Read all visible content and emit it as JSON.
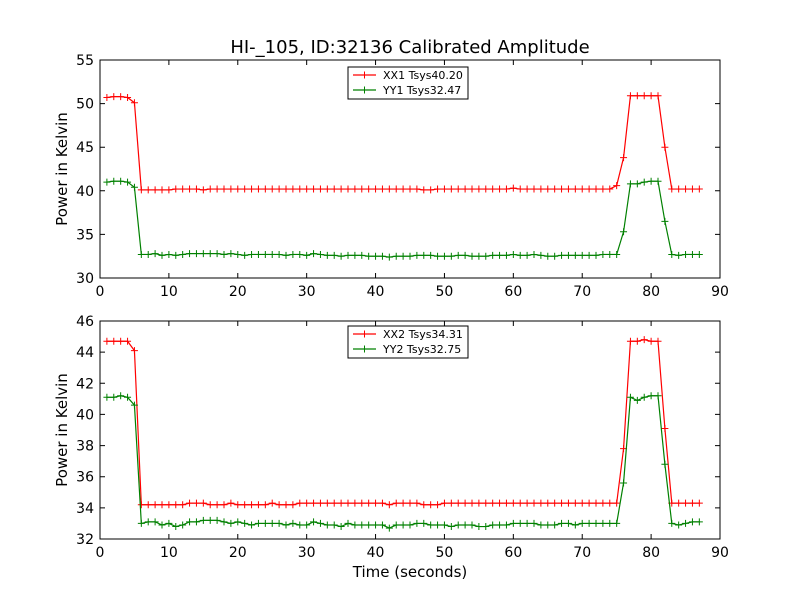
{
  "figure": {
    "title": "HI-_105, ID:32136 Calibrated Amplitude",
    "xlabel": "Time (seconds)"
  },
  "chart_data": [
    {
      "type": "line",
      "ylabel": "Power in Kelvin",
      "xlim": [
        0,
        90
      ],
      "ylim": [
        30,
        55
      ],
      "xticks": [
        0,
        10,
        20,
        30,
        40,
        50,
        60,
        70,
        80,
        90
      ],
      "yticks": [
        30,
        35,
        40,
        45,
        50,
        55
      ],
      "legend_position": "top-center",
      "grid": false,
      "x": [
        1,
        2,
        3,
        4,
        5,
        6,
        7,
        8,
        9,
        10,
        11,
        12,
        13,
        14,
        15,
        16,
        17,
        18,
        19,
        20,
        21,
        22,
        23,
        24,
        25,
        26,
        27,
        28,
        29,
        30,
        31,
        32,
        33,
        34,
        35,
        36,
        37,
        38,
        39,
        40,
        41,
        42,
        43,
        44,
        45,
        46,
        47,
        48,
        49,
        50,
        51,
        52,
        53,
        54,
        55,
        56,
        57,
        58,
        59,
        60,
        61,
        62,
        63,
        64,
        65,
        66,
        67,
        68,
        69,
        70,
        71,
        72,
        73,
        74,
        75,
        76,
        77,
        78,
        79,
        80,
        81,
        82,
        83,
        84,
        85,
        86,
        87
      ],
      "series": [
        {
          "name": "XX1 Tsys40.20",
          "color": "#ff0000",
          "values": [
            50.7,
            50.8,
            50.8,
            50.7,
            50.1,
            40.1,
            40.1,
            40.1,
            40.1,
            40.1,
            40.2,
            40.2,
            40.2,
            40.2,
            40.1,
            40.2,
            40.2,
            40.2,
            40.2,
            40.2,
            40.2,
            40.2,
            40.2,
            40.2,
            40.2,
            40.2,
            40.2,
            40.2,
            40.2,
            40.2,
            40.2,
            40.2,
            40.2,
            40.2,
            40.2,
            40.2,
            40.2,
            40.2,
            40.2,
            40.2,
            40.2,
            40.2,
            40.2,
            40.2,
            40.2,
            40.2,
            40.1,
            40.1,
            40.2,
            40.2,
            40.2,
            40.2,
            40.2,
            40.2,
            40.2,
            40.2,
            40.2,
            40.2,
            40.2,
            40.3,
            40.2,
            40.2,
            40.2,
            40.2,
            40.2,
            40.2,
            40.2,
            40.2,
            40.2,
            40.2,
            40.2,
            40.2,
            40.2,
            40.2,
            40.6,
            43.8,
            50.9,
            50.9,
            50.9,
            50.9,
            50.9,
            45.0,
            40.2,
            40.2,
            40.2,
            40.2,
            40.2
          ]
        },
        {
          "name": "YY1 Tsys32.47",
          "color": "#008000",
          "values": [
            41.0,
            41.1,
            41.1,
            41.0,
            40.4,
            32.7,
            32.7,
            32.8,
            32.6,
            32.7,
            32.6,
            32.7,
            32.8,
            32.8,
            32.8,
            32.8,
            32.8,
            32.7,
            32.8,
            32.7,
            32.6,
            32.7,
            32.7,
            32.7,
            32.7,
            32.7,
            32.6,
            32.7,
            32.7,
            32.6,
            32.8,
            32.7,
            32.6,
            32.6,
            32.5,
            32.6,
            32.6,
            32.6,
            32.5,
            32.5,
            32.5,
            32.4,
            32.5,
            32.5,
            32.5,
            32.6,
            32.6,
            32.6,
            32.5,
            32.5,
            32.5,
            32.6,
            32.6,
            32.5,
            32.5,
            32.5,
            32.6,
            32.6,
            32.6,
            32.7,
            32.6,
            32.6,
            32.7,
            32.6,
            32.5,
            32.5,
            32.6,
            32.6,
            32.6,
            32.6,
            32.6,
            32.6,
            32.7,
            32.7,
            32.7,
            35.3,
            40.8,
            40.8,
            41.0,
            41.1,
            41.1,
            36.5,
            32.7,
            32.6,
            32.7,
            32.7,
            32.7
          ]
        }
      ]
    },
    {
      "type": "line",
      "ylabel": "Power in Kelvin",
      "xlabel": "Time (seconds)",
      "xlim": [
        0,
        90
      ],
      "ylim": [
        32,
        46
      ],
      "xticks": [
        0,
        10,
        20,
        30,
        40,
        50,
        60,
        70,
        80,
        90
      ],
      "yticks": [
        32,
        34,
        36,
        38,
        40,
        42,
        44,
        46
      ],
      "legend_position": "top-center",
      "grid": false,
      "x": [
        1,
        2,
        3,
        4,
        5,
        6,
        7,
        8,
        9,
        10,
        11,
        12,
        13,
        14,
        15,
        16,
        17,
        18,
        19,
        20,
        21,
        22,
        23,
        24,
        25,
        26,
        27,
        28,
        29,
        30,
        31,
        32,
        33,
        34,
        35,
        36,
        37,
        38,
        39,
        40,
        41,
        42,
        43,
        44,
        45,
        46,
        47,
        48,
        49,
        50,
        51,
        52,
        53,
        54,
        55,
        56,
        57,
        58,
        59,
        60,
        61,
        62,
        63,
        64,
        65,
        66,
        67,
        68,
        69,
        70,
        71,
        72,
        73,
        74,
        75,
        76,
        77,
        78,
        79,
        80,
        81,
        82,
        83,
        84,
        85,
        86,
        87
      ],
      "series": [
        {
          "name": "XX2 Tsys34.31",
          "color": "#ff0000",
          "values": [
            44.7,
            44.7,
            44.7,
            44.7,
            44.1,
            34.2,
            34.2,
            34.2,
            34.2,
            34.2,
            34.2,
            34.2,
            34.3,
            34.3,
            34.3,
            34.2,
            34.2,
            34.2,
            34.3,
            34.2,
            34.2,
            34.2,
            34.2,
            34.2,
            34.3,
            34.2,
            34.2,
            34.2,
            34.3,
            34.3,
            34.3,
            34.3,
            34.3,
            34.3,
            34.3,
            34.3,
            34.3,
            34.3,
            34.3,
            34.3,
            34.3,
            34.2,
            34.3,
            34.3,
            34.3,
            34.3,
            34.2,
            34.2,
            34.2,
            34.3,
            34.3,
            34.3,
            34.3,
            34.3,
            34.3,
            34.3,
            34.3,
            34.3,
            34.3,
            34.3,
            34.3,
            34.3,
            34.3,
            34.3,
            34.3,
            34.3,
            34.3,
            34.3,
            34.3,
            34.3,
            34.3,
            34.3,
            34.3,
            34.3,
            34.3,
            37.8,
            44.7,
            44.7,
            44.8,
            44.7,
            44.7,
            39.1,
            34.3,
            34.3,
            34.3,
            34.3,
            34.3
          ]
        },
        {
          "name": "YY2 Tsys32.75",
          "color": "#008000",
          "values": [
            41.1,
            41.1,
            41.2,
            41.1,
            40.6,
            33.0,
            33.1,
            33.1,
            32.9,
            33.0,
            32.8,
            32.9,
            33.1,
            33.1,
            33.2,
            33.2,
            33.2,
            33.1,
            33.0,
            33.1,
            33.0,
            32.9,
            33.0,
            33.0,
            33.0,
            33.0,
            32.9,
            33.0,
            32.9,
            32.9,
            33.1,
            33.0,
            32.9,
            32.9,
            32.8,
            33.0,
            32.9,
            32.9,
            32.9,
            32.9,
            32.9,
            32.7,
            32.9,
            32.9,
            32.9,
            33.0,
            33.0,
            32.9,
            32.9,
            32.9,
            32.8,
            32.9,
            32.9,
            32.9,
            32.8,
            32.8,
            32.9,
            32.9,
            32.9,
            33.0,
            33.0,
            33.0,
            33.0,
            32.9,
            32.9,
            32.9,
            33.0,
            33.0,
            32.9,
            33.0,
            33.0,
            33.0,
            33.0,
            33.0,
            33.0,
            35.6,
            41.1,
            40.9,
            41.1,
            41.2,
            41.2,
            36.8,
            33.0,
            32.9,
            33.0,
            33.1,
            33.1
          ]
        }
      ]
    }
  ]
}
